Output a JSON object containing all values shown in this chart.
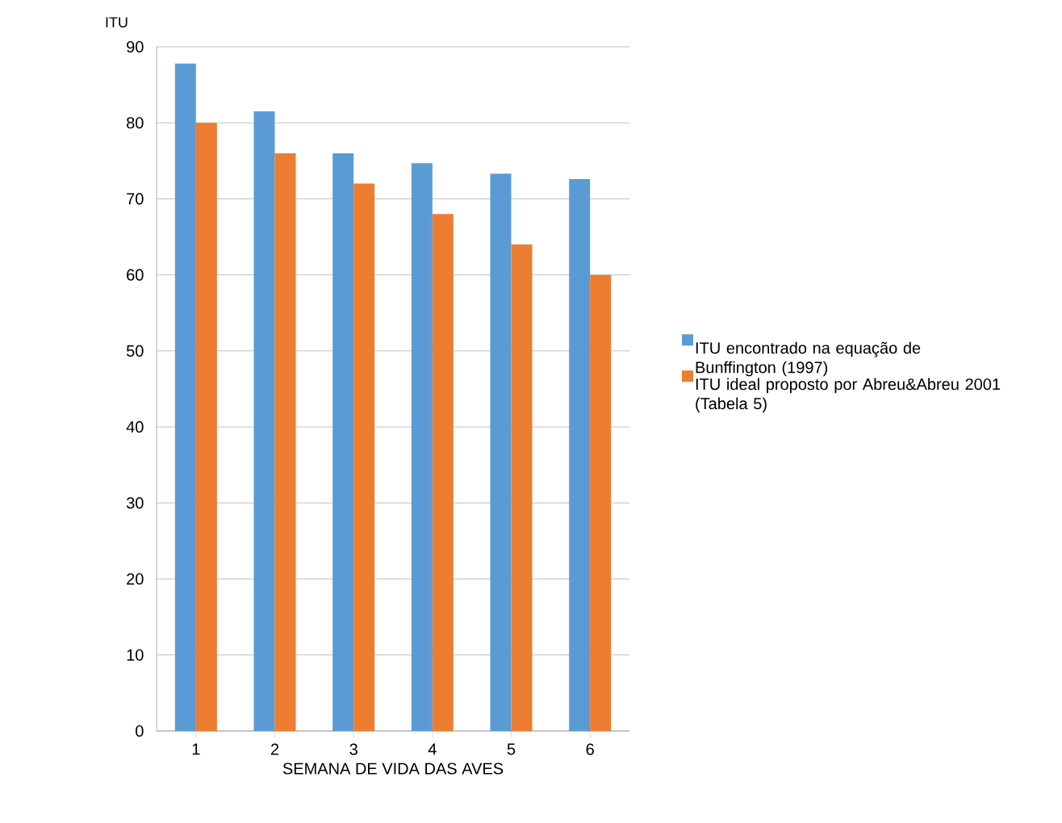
{
  "chart_data": {
    "type": "bar",
    "xlabel": "SEMANA DE VIDA DAS AVES",
    "ylabel": "ITU",
    "categories": [
      "1",
      "2",
      "3",
      "4",
      "5",
      "6"
    ],
    "series": [
      {
        "name": "ITU encontrado na equação de Bunffington (1997)",
        "color": "#5b9bd5",
        "values": [
          87.8,
          81.5,
          76,
          74.7,
          73.3,
          72.6
        ]
      },
      {
        "name": "ITU ideal proposto por Abreu&Abreu 2001 (Tabela 5)",
        "color": "#ed7d31",
        "values": [
          80,
          76,
          72,
          68,
          64,
          60
        ]
      }
    ],
    "ylim": [
      0,
      90
    ],
    "yticks": [
      0,
      10,
      20,
      30,
      40,
      50,
      60,
      70,
      80,
      90
    ],
    "grid": "y",
    "legend": "right"
  }
}
